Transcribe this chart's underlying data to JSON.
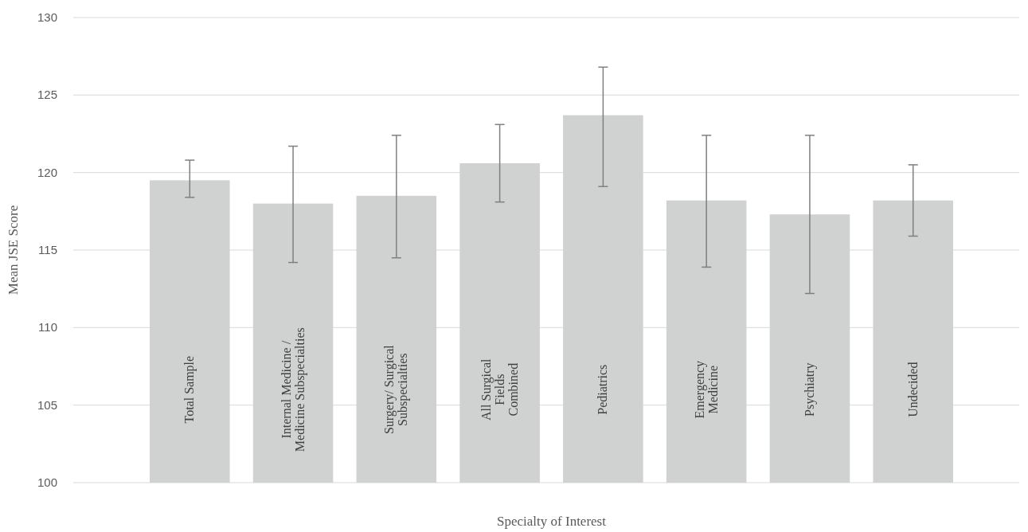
{
  "chart_data": {
    "type": "bar",
    "xlabel": "Specialty of Interest",
    "ylabel": "Mean JSE Score",
    "categories": [
      "Total Sample",
      "Internal Medicine / Medicine Subspecialties",
      "Surgery/ Surgical Subspecialties",
      "All Surgical Fields Combined",
      "Pediatrics",
      "Emergency Medicine",
      "Psychiatry",
      "Undecided"
    ],
    "values": [
      119.5,
      118.0,
      118.5,
      120.6,
      123.7,
      118.2,
      117.3,
      118.2
    ],
    "errors": [
      [
        118.4,
        120.8
      ],
      [
        114.2,
        121.7
      ],
      [
        114.5,
        122.4
      ],
      [
        118.1,
        123.1
      ],
      [
        119.1,
        126.8
      ],
      [
        113.9,
        122.4
      ],
      [
        112.2,
        122.4
      ],
      [
        115.9,
        120.5
      ]
    ],
    "color": "#d0d2d1",
    "ylim": [
      100,
      130
    ],
    "yticks": [
      100,
      105,
      110,
      115,
      120,
      125,
      130
    ],
    "grid": "y"
  }
}
